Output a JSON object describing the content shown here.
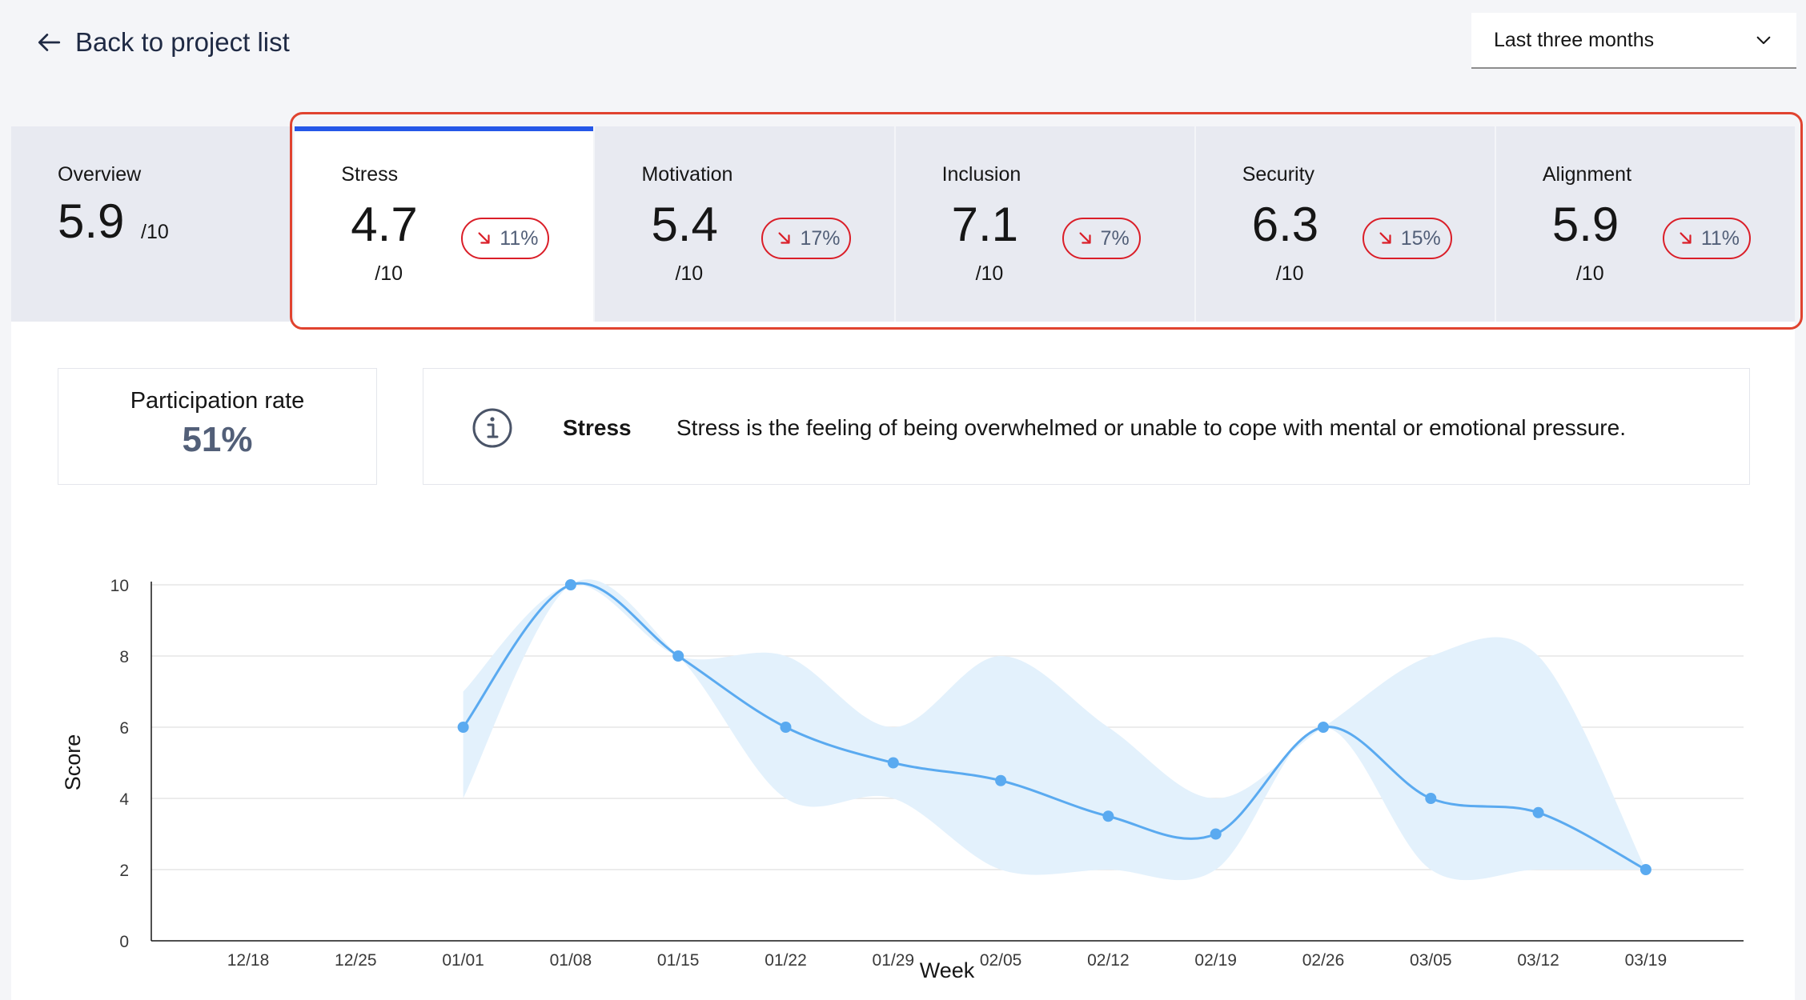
{
  "nav": {
    "back_label": "Back to project list",
    "back_icon": "arrow-left-icon"
  },
  "period": {
    "selected": "Last three months",
    "icon": "chevron-down-icon"
  },
  "overview": {
    "label": "Overview",
    "value": "5.9",
    "unit": "/10"
  },
  "metrics": [
    {
      "label": "Stress",
      "value": "4.7",
      "unit": "/10",
      "delta": "11%",
      "trend": "down",
      "selected": true
    },
    {
      "label": "Motivation",
      "value": "5.4",
      "unit": "/10",
      "delta": "17%",
      "trend": "down",
      "selected": false
    },
    {
      "label": "Inclusion",
      "value": "7.1",
      "unit": "/10",
      "delta": "7%",
      "trend": "down",
      "selected": false
    },
    {
      "label": "Security",
      "value": "6.3",
      "unit": "/10",
      "delta": "15%",
      "trend": "down",
      "selected": false
    },
    {
      "label": "Alignment",
      "value": "5.9",
      "unit": "/10",
      "delta": "11%",
      "trend": "down",
      "selected": false
    }
  ],
  "participation": {
    "label": "Participation rate",
    "value": "51%"
  },
  "description": {
    "icon": "info-icon",
    "term": "Stress",
    "text": "Stress is the feeling of being overwhelmed or unable to cope with mental or emotional pressure."
  },
  "colors": {
    "accent": "#2557e8",
    "line": "#5aaaf0",
    "band": "#e3f1fc",
    "delta_border": "#da1e28",
    "highlight": "#e0432f"
  },
  "chart_data": {
    "type": "line",
    "xlabel": "Week",
    "ylabel": "Score",
    "ylim": [
      0,
      10
    ],
    "yticks": [
      0,
      2,
      4,
      6,
      8,
      10
    ],
    "categories": [
      "12/18",
      "12/25",
      "01/01",
      "01/08",
      "01/15",
      "01/22",
      "01/29",
      "02/05",
      "02/12",
      "02/19",
      "02/26",
      "03/05",
      "03/12",
      "03/19"
    ],
    "series": [
      {
        "values": [
          null,
          null,
          6,
          10,
          8,
          6,
          5,
          4.5,
          3.5,
          3,
          6,
          4,
          3.6,
          2
        ],
        "band_upper": [
          null,
          null,
          7,
          10,
          8,
          8,
          6,
          8,
          6,
          4,
          6,
          8,
          8,
          2
        ],
        "band_lower": [
          null,
          null,
          4,
          10,
          8,
          4,
          4,
          2,
          2,
          2,
          6,
          2,
          2,
          2
        ]
      }
    ],
    "grid": "horizontal",
    "legend": "none"
  }
}
